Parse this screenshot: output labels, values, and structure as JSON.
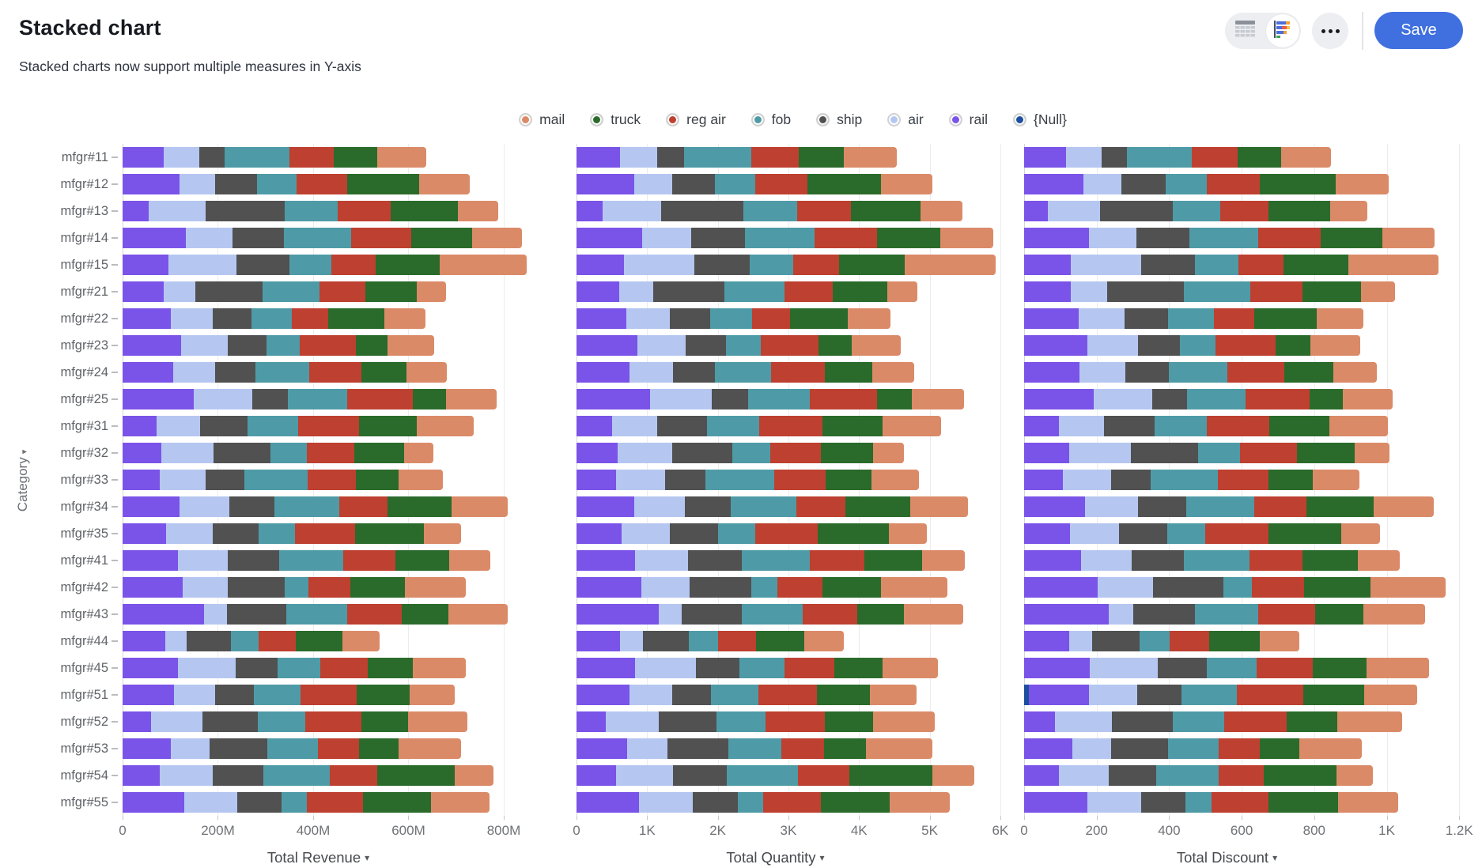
{
  "header": {
    "title": "Stacked chart",
    "subtitle": "Stacked charts now support multiple measures in Y-axis"
  },
  "toolbar": {
    "save_label": "Save",
    "icons": {
      "table_view_icon": "table-grid",
      "chart_view_icon": "stacked-bar-chart",
      "more_icon": "ellipsis",
      "sort_arrow": "▾"
    }
  },
  "chart_data": {
    "type": "bar",
    "stacked": true,
    "orientation": "horizontal",
    "grid": true,
    "legend_position": "top",
    "y_axis_title": "Category",
    "categories": [
      "mfgr#11",
      "mfgr#12",
      "mfgr#13",
      "mfgr#14",
      "mfgr#15",
      "mfgr#21",
      "mfgr#22",
      "mfgr#23",
      "mfgr#24",
      "mfgr#25",
      "mfgr#31",
      "mfgr#32",
      "mfgr#33",
      "mfgr#34",
      "mfgr#35",
      "mfgr#41",
      "mfgr#42",
      "mfgr#43",
      "mfgr#44",
      "mfgr#45",
      "mfgr#51",
      "mfgr#52",
      "mfgr#53",
      "mfgr#54",
      "mfgr#55"
    ],
    "legend": [
      {
        "label": "mail",
        "color": "#DB8A68"
      },
      {
        "label": "truck",
        "color": "#2A6B2B"
      },
      {
        "label": "reg air",
        "color": "#BE4030"
      },
      {
        "label": "fob",
        "color": "#4E9BA7"
      },
      {
        "label": "ship",
        "color": "#515151"
      },
      {
        "label": "air",
        "color": "#B5C7F1"
      },
      {
        "label": "rail",
        "color": "#7A53E8"
      },
      {
        "label": "{Null}",
        "color": "#1D4F9E"
      }
    ],
    "stack_order": [
      "{Null}",
      "rail",
      "air",
      "ship",
      "fob",
      "reg air",
      "truck",
      "mail"
    ],
    "panels": [
      {
        "title": "Total Revenue",
        "unit": "M",
        "xlim": [
          0,
          888
        ],
        "ticks": [
          {
            "v": 0,
            "label": "0"
          },
          {
            "v": 200,
            "label": "200M"
          },
          {
            "v": 400,
            "label": "400M"
          },
          {
            "v": 600,
            "label": "600M"
          },
          {
            "v": 800,
            "label": "800M"
          }
        ],
        "series": {
          "{Null}": [
            0,
            0,
            0,
            0,
            0,
            0,
            0,
            0,
            0,
            0,
            0,
            0,
            0,
            0,
            0,
            0,
            0,
            0,
            0,
            0,
            0,
            0,
            0,
            0,
            0
          ],
          "rail": [
            87,
            119,
            54,
            132,
            96,
            86,
            102,
            123,
            107,
            149,
            71,
            81,
            78,
            120,
            92,
            116,
            126,
            171,
            89,
            117,
            108,
            59,
            102,
            78,
            130
          ],
          "air": [
            74,
            76,
            120,
            98,
            143,
            67,
            87,
            98,
            88,
            124,
            91,
            110,
            96,
            104,
            97,
            105,
            94,
            48,
            45,
            121,
            87,
            109,
            81,
            112,
            111
          ],
          "ship": [
            53,
            88,
            167,
            108,
            111,
            140,
            82,
            81,
            84,
            74,
            101,
            120,
            81,
            95,
            97,
            107,
            121,
            125,
            93,
            87,
            80,
            116,
            121,
            105,
            92
          ],
          "fob": [
            136,
            82,
            110,
            141,
            89,
            121,
            85,
            70,
            113,
            125,
            106,
            75,
            134,
            135,
            76,
            135,
            49,
            127,
            59,
            90,
            98,
            99,
            106,
            140,
            53
          ],
          "reg air": [
            94,
            107,
            111,
            127,
            93,
            96,
            76,
            117,
            109,
            137,
            127,
            101,
            101,
            102,
            126,
            109,
            88,
            115,
            77,
            99,
            119,
            119,
            86,
            100,
            119
          ],
          "truck": [
            90,
            151,
            141,
            127,
            133,
            108,
            117,
            67,
            95,
            70,
            122,
            104,
            90,
            134,
            145,
            114,
            114,
            98,
            99,
            96,
            110,
            97,
            83,
            163,
            142
          ],
          "mail": [
            104,
            106,
            85,
            106,
            184,
            61,
            87,
            98,
            84,
            106,
            119,
            62,
            93,
            118,
            78,
            86,
            129,
            124,
            78,
            111,
            95,
            124,
            132,
            81,
            124
          ]
        }
      },
      {
        "title": "Total Quantity",
        "unit": "",
        "xlim": [
          0,
          6080
        ],
        "ticks": [
          {
            "v": 0,
            "label": "0"
          },
          {
            "v": 1000,
            "label": "1K"
          },
          {
            "v": 2000,
            "label": "2K"
          },
          {
            "v": 3000,
            "label": "3K"
          },
          {
            "v": 4000,
            "label": "4K"
          },
          {
            "v": 5000,
            "label": "5K"
          },
          {
            "v": 6000,
            "label": "6K"
          }
        ],
        "series": {
          "{Null}": [
            0,
            0,
            0,
            0,
            0,
            0,
            0,
            0,
            0,
            0,
            0,
            0,
            0,
            0,
            0,
            0,
            0,
            0,
            0,
            0,
            0,
            0,
            0,
            0,
            0
          ],
          "rail": [
            620,
            820,
            370,
            930,
            670,
            610,
            710,
            860,
            750,
            1040,
            500,
            580,
            560,
            820,
            640,
            830,
            920,
            1160,
            620,
            830,
            750,
            410,
            720,
            560,
            890
          ],
          "air": [
            520,
            530,
            830,
            690,
            1000,
            480,
            610,
            690,
            620,
            870,
            640,
            780,
            690,
            710,
            680,
            750,
            680,
            330,
            320,
            860,
            600,
            760,
            570,
            810,
            760
          ],
          "ship": [
            380,
            610,
            1160,
            760,
            780,
            1000,
            570,
            570,
            590,
            520,
            710,
            850,
            580,
            650,
            680,
            760,
            880,
            850,
            650,
            620,
            550,
            810,
            860,
            760,
            630
          ],
          "fob": [
            960,
            570,
            760,
            990,
            620,
            860,
            600,
            490,
            790,
            870,
            740,
            530,
            970,
            930,
            530,
            960,
            360,
            860,
            410,
            640,
            680,
            700,
            750,
            1010,
            360
          ],
          "reg air": [
            670,
            740,
            770,
            890,
            650,
            680,
            530,
            820,
            770,
            960,
            890,
            720,
            730,
            700,
            880,
            780,
            640,
            780,
            540,
            700,
            820,
            840,
            610,
            720,
            820
          ],
          "truck": [
            640,
            1040,
            980,
            890,
            930,
            770,
            820,
            470,
            670,
            490,
            850,
            740,
            650,
            920,
            1010,
            810,
            830,
            660,
            690,
            680,
            760,
            680,
            590,
            1180,
            970
          ],
          "mail": [
            740,
            730,
            590,
            750,
            1290,
            430,
            610,
            690,
            590,
            740,
            830,
            440,
            670,
            810,
            540,
            610,
            940,
            840,
            550,
            790,
            660,
            870,
            940,
            590,
            850
          ]
        }
      },
      {
        "title": "Total Discount",
        "unit": "",
        "xlim": [
          0,
          1206
        ],
        "ticks": [
          {
            "v": 0,
            "label": "0"
          },
          {
            "v": 200,
            "label": "200"
          },
          {
            "v": 400,
            "label": "400"
          },
          {
            "v": 600,
            "label": "600"
          },
          {
            "v": 800,
            "label": "800"
          },
          {
            "v": 1000,
            "label": "1K"
          },
          {
            "v": 1200,
            "label": "1.2K"
          }
        ],
        "series": {
          "{Null}": [
            0,
            0,
            0,
            0,
            0,
            0,
            0,
            0,
            0,
            0,
            0,
            0,
            0,
            0,
            0,
            0,
            0,
            0,
            0,
            0,
            12,
            0,
            0,
            0,
            0
          ],
          "rail": [
            115,
            164,
            65,
            178,
            129,
            129,
            150,
            175,
            153,
            193,
            97,
            125,
            107,
            168,
            127,
            156,
            203,
            234,
            125,
            181,
            166,
            85,
            134,
            96,
            174
          ],
          "air": [
            98,
            105,
            144,
            132,
            193,
            101,
            128,
            139,
            126,
            160,
            124,
            170,
            132,
            145,
            134,
            141,
            152,
            66,
            63,
            187,
            134,
            157,
            106,
            138,
            148
          ],
          "ship": [
            70,
            121,
            201,
            146,
            149,
            211,
            120,
            115,
            120,
            96,
            138,
            185,
            111,
            133,
            134,
            144,
            195,
            171,
            131,
            135,
            123,
            167,
            158,
            130,
            123
          ],
          "fob": [
            180,
            113,
            132,
            190,
            120,
            182,
            125,
            99,
            162,
            162,
            144,
            116,
            184,
            189,
            105,
            181,
            79,
            174,
            83,
            139,
            151,
            143,
            139,
            173,
            71
          ],
          "reg air": [
            125,
            148,
            133,
            171,
            125,
            144,
            112,
            166,
            156,
            177,
            173,
            156,
            139,
            143,
            174,
            146,
            142,
            157,
            108,
            153,
            183,
            172,
            113,
            124,
            159
          ],
          "truck": [
            120,
            208,
            169,
            171,
            179,
            163,
            172,
            95,
            136,
            91,
            166,
            160,
            124,
            187,
            200,
            153,
            184,
            134,
            139,
            149,
            169,
            140,
            109,
            201,
            190
          ],
          "mail": [
            138,
            146,
            102,
            143,
            248,
            92,
            128,
            139,
            120,
            137,
            162,
            96,
            128,
            165,
            107,
            116,
            208,
            169,
            110,
            172,
            146,
            179,
            173,
            100,
            166
          ]
        }
      }
    ]
  }
}
